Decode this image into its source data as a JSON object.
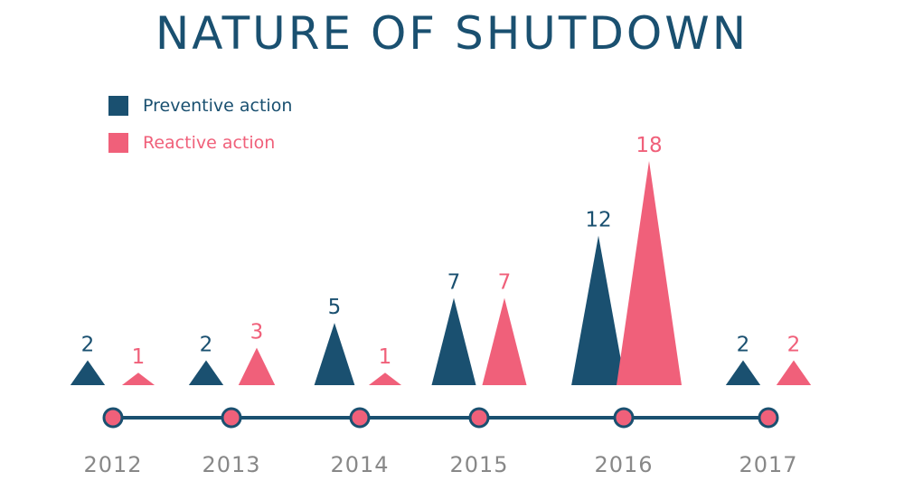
{
  "chart_data": {
    "type": "bar",
    "title": "NATURE OF SHUTDOWN",
    "categories": [
      "2012",
      "2013",
      "2014",
      "2015",
      "2016",
      "2017"
    ],
    "series": [
      {
        "name": "Preventive action",
        "color": "#1a5070",
        "values": [
          2,
          2,
          5,
          7,
          12,
          2
        ]
      },
      {
        "name": "Reactive action",
        "color": "#f0607a",
        "values": [
          1,
          3,
          1,
          7,
          18,
          2
        ]
      }
    ],
    "xlabel": "",
    "ylabel": "",
    "ylim": [
      0,
      18
    ],
    "legend": "top-left"
  },
  "colors": {
    "timeline_line": "#1a5070",
    "dot_fill": "#f0607a",
    "year_label": "#888888"
  }
}
